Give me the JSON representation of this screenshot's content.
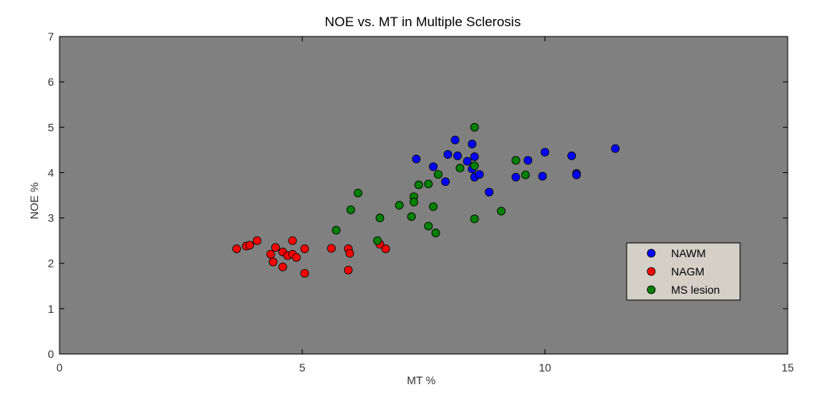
{
  "chart_data": {
    "type": "scatter",
    "title": "NOE vs. MT in Multiple Sclerosis",
    "xlabel": "MT %",
    "ylabel": "NOE %",
    "xlim": [
      0,
      15
    ],
    "ylim": [
      0,
      7
    ],
    "xticks": [
      0,
      5,
      10,
      15
    ],
    "yticks": [
      0,
      1,
      2,
      3,
      4,
      5,
      6,
      7
    ],
    "grid": false,
    "legend_position": "lower-right",
    "plot_background": "#808080",
    "series": [
      {
        "name": "NAWM",
        "color": "#0000ff",
        "points": [
          [
            7.35,
            4.3
          ],
          [
            8.0,
            4.4
          ],
          [
            8.15,
            4.72
          ],
          [
            8.2,
            4.37
          ],
          [
            8.4,
            4.25
          ],
          [
            8.5,
            4.63
          ],
          [
            8.5,
            4.08
          ],
          [
            8.55,
            4.35
          ],
          [
            8.55,
            3.9
          ],
          [
            8.65,
            3.96
          ],
          [
            7.7,
            4.13
          ],
          [
            7.95,
            3.8
          ],
          [
            8.85,
            3.57
          ],
          [
            9.4,
            3.9
          ],
          [
            9.65,
            4.27
          ],
          [
            9.95,
            3.92
          ],
          [
            10.0,
            4.45
          ],
          [
            10.55,
            4.37
          ],
          [
            10.65,
            3.98
          ],
          [
            10.65,
            3.95
          ],
          [
            11.45,
            4.53
          ]
        ]
      },
      {
        "name": "NAGM",
        "color": "#ff0000",
        "points": [
          [
            3.65,
            2.32
          ],
          [
            3.85,
            2.38
          ],
          [
            3.92,
            2.4
          ],
          [
            4.07,
            2.5
          ],
          [
            4.35,
            2.2
          ],
          [
            4.45,
            2.35
          ],
          [
            4.4,
            2.03
          ],
          [
            4.6,
            2.25
          ],
          [
            4.6,
            1.92
          ],
          [
            4.7,
            2.17
          ],
          [
            4.8,
            2.2
          ],
          [
            4.8,
            2.5
          ],
          [
            4.88,
            2.13
          ],
          [
            5.05,
            2.32
          ],
          [
            5.05,
            1.78
          ],
          [
            5.6,
            2.33
          ],
          [
            5.95,
            2.32
          ],
          [
            5.98,
            2.22
          ],
          [
            5.95,
            1.85
          ],
          [
            6.6,
            2.42
          ],
          [
            6.72,
            2.32
          ]
        ]
      },
      {
        "name": "MS lesion",
        "color": "#008000",
        "points": [
          [
            5.7,
            2.73
          ],
          [
            6.0,
            3.18
          ],
          [
            6.15,
            3.55
          ],
          [
            6.55,
            2.5
          ],
          [
            6.6,
            3.0
          ],
          [
            7.0,
            3.28
          ],
          [
            7.25,
            3.03
          ],
          [
            7.3,
            3.47
          ],
          [
            7.3,
            3.35
          ],
          [
            7.4,
            3.73
          ],
          [
            7.6,
            3.75
          ],
          [
            7.6,
            2.82
          ],
          [
            7.7,
            3.25
          ],
          [
            7.75,
            2.67
          ],
          [
            7.8,
            3.96
          ],
          [
            8.25,
            4.1
          ],
          [
            8.55,
            5.0
          ],
          [
            8.55,
            4.15
          ],
          [
            8.55,
            2.98
          ],
          [
            9.1,
            3.15
          ],
          [
            9.4,
            4.27
          ],
          [
            9.6,
            3.95
          ]
        ]
      }
    ]
  }
}
